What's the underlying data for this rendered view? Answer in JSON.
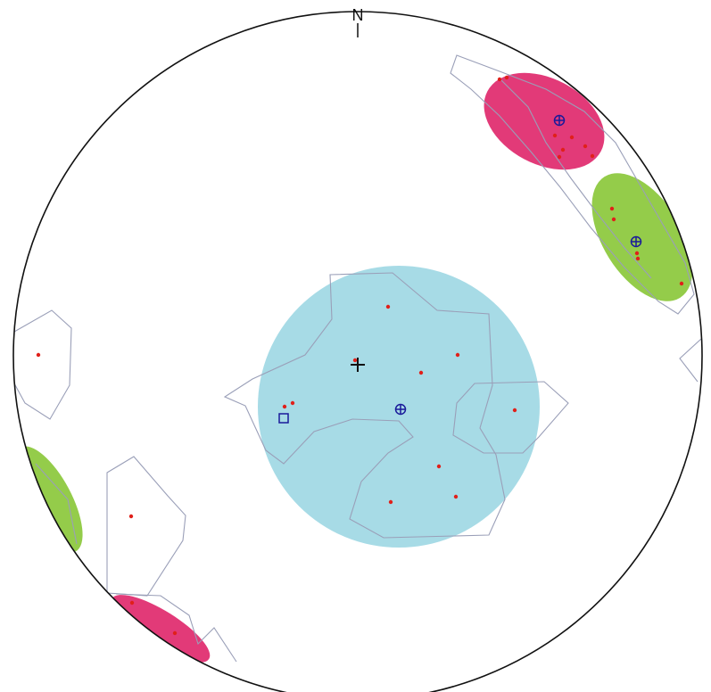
{
  "stereonet": {
    "north_label": "N",
    "colors": {
      "primitive": "#111111",
      "cluster_center_set": "#6fd0de",
      "cluster_pink_set": "#e4306e",
      "cluster_green_set": "#86c83a",
      "contour_line": "#9a9fb8",
      "pole_point": "#e0201a",
      "mean_pole_symbol": "#1a1a9a"
    },
    "symbols": [
      "center-cross",
      "mean-pole-circle-cross",
      "square-marker",
      "pole-dot"
    ]
  }
}
